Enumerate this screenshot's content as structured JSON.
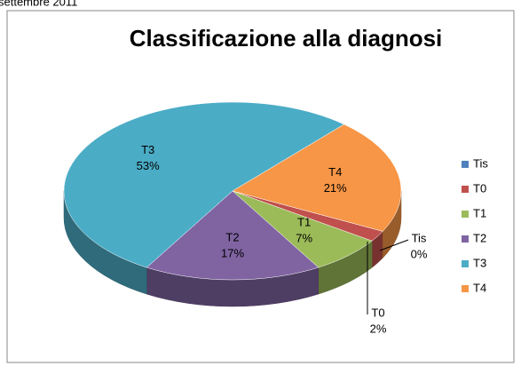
{
  "caption": "settembre 2011",
  "chart_data": {
    "type": "pie3d",
    "title": "Classificazione alla diagnosi",
    "categories": [
      "Tis",
      "T0",
      "T1",
      "T2",
      "T3",
      "T4"
    ],
    "values": [
      0,
      2,
      7,
      17,
      53,
      21
    ],
    "value_labels": [
      "0%",
      "2%",
      "7%",
      "17%",
      "53%",
      "21%"
    ],
    "colors": [
      "#4f81bd",
      "#c0504d",
      "#9bbb59",
      "#8064a2",
      "#4bacc6",
      "#f79646"
    ],
    "legend": "right"
  }
}
